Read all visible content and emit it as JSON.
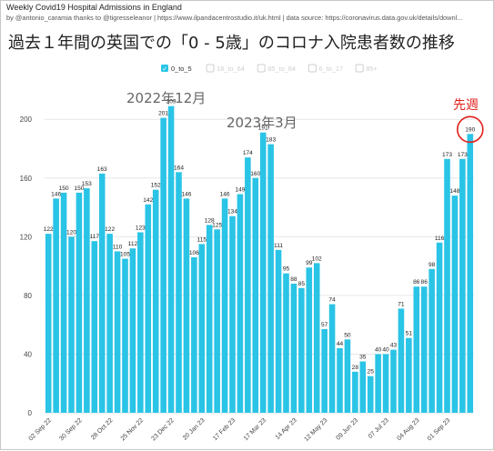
{
  "header": {
    "title": "Weekly Covid19 Hospital Admissions in England",
    "credit": "by @antonio_caramia thanks to @tigresseleanor | https://www.ilpandacentrostudio.it/uk.html | data source: https://coronavirus.data.gov.uk/details/downl..."
  },
  "main_title": "過去１年間の英国での「0 - 5歳」のコロナ入院患者数の推移",
  "colors": {
    "bar": "#29c4e6",
    "grid": "#e6e6e6",
    "axis_text": "#444444",
    "annotation": "#666666",
    "highlight": "#e0201a",
    "legend_inactive": "#cfcfcf"
  },
  "chart_data": {
    "type": "bar",
    "ylim": [
      0,
      215
    ],
    "yticks": [
      0,
      40,
      80,
      120,
      160,
      200
    ],
    "grid": true,
    "legend_position": "top-center",
    "legend": [
      {
        "label": "0_to_5",
        "active": true
      },
      {
        "label": "18_to_64",
        "active": false
      },
      {
        "label": "65_to_84",
        "active": false
      },
      {
        "label": "6_to_17",
        "active": false
      },
      {
        "label": "85+",
        "active": false
      }
    ],
    "xtick_labels": [
      "02 Sep 22",
      "30 Sep 22",
      "28 Oct 22",
      "25 Nov 22",
      "23 Dec 22",
      "20 Jan 23",
      "17 Feb 23",
      "17 Mar 23",
      "14 Apr 23",
      "12 May 23",
      "09 Jun 23",
      "07 Jul 23",
      "04 Aug 23",
      "01 Sep 23",
      "29 Sep 23"
    ],
    "series": [
      {
        "values": [
          122,
          146,
          150,
          120,
          150,
          153,
          117,
          163,
          122,
          110,
          105,
          112,
          123,
          142,
          152,
          201,
          209,
          164,
          146,
          106,
          115,
          128,
          125,
          146,
          134,
          149,
          174,
          160,
          191,
          183,
          111,
          95,
          88,
          85,
          99,
          102,
          57,
          74,
          44,
          50,
          28,
          35,
          25,
          40,
          40,
          43,
          71,
          51,
          86,
          86,
          98,
          116,
          173,
          148,
          173,
          190
        ]
      }
    ],
    "annotations": [
      {
        "text": "2022年12月"
      },
      {
        "text": "2023年3月"
      },
      {
        "text": "先週"
      }
    ]
  }
}
